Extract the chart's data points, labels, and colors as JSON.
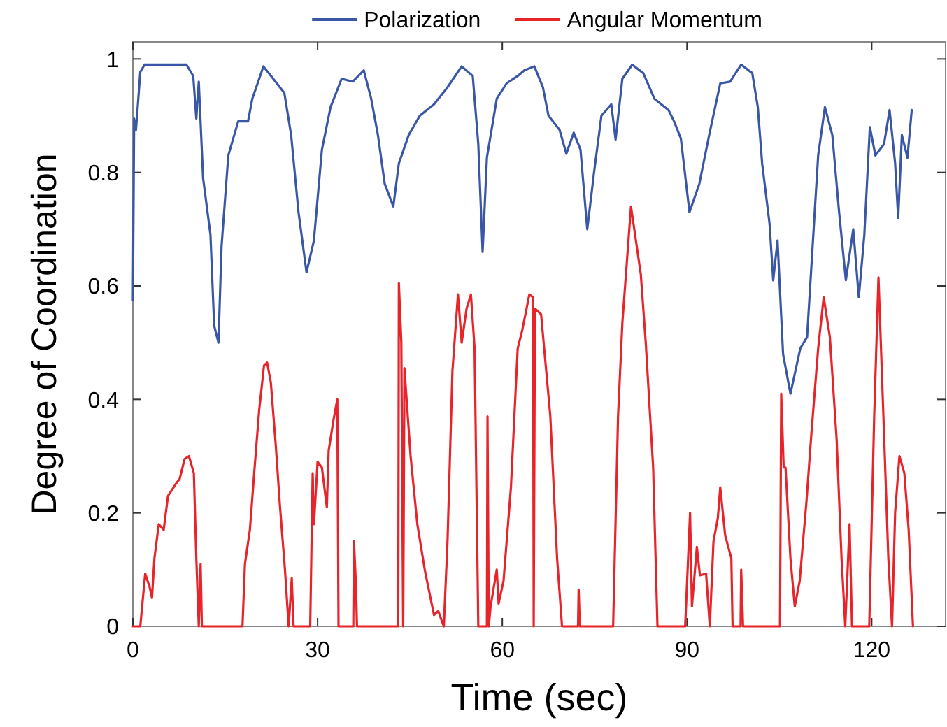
{
  "chart_data": {
    "type": "line",
    "xlabel": "Time (sec)",
    "ylabel": "Degree of Coordination",
    "xlim": [
      0,
      132
    ],
    "ylim": [
      0,
      1.03
    ],
    "xticks": [
      0,
      30,
      60,
      90,
      120
    ],
    "yticks": [
      0,
      0.2,
      0.4,
      0.6,
      0.8,
      1
    ],
    "grid": false,
    "legend": "top",
    "marker": "none",
    "line_style": "solid",
    "series": [
      {
        "name": "Polarization",
        "color": "#3a57a7",
        "x": [
          0,
          0.2,
          0.5,
          1.2,
          1.9,
          3.5,
          5.7,
          8.7,
          9.8,
          10.3,
          10.7,
          11.4,
          12.6,
          13.2,
          13.9,
          14.4,
          15.5,
          17.1,
          18.7,
          19.4,
          21.2,
          22.8,
          24.6,
          25.7,
          26.9,
          28.2,
          29.4,
          30.7,
          32.1,
          33.9,
          35.7,
          37.5,
          38.7,
          39.8,
          40.9,
          42.3,
          43.2,
          44.8,
          46.6,
          48.9,
          51.1,
          53.4,
          55.2,
          56.1,
          56.8,
          57.5,
          59.1,
          60.7,
          62.5,
          63.6,
          65.2,
          66.6,
          67.5,
          69.3,
          70.4,
          71.6,
          72.7,
          73.8,
          74.9,
          76.1,
          77.7,
          78.4,
          79.5,
          81.1,
          82.9,
          84.7,
          87,
          87.9,
          89,
          90.4,
          92,
          93.6,
          95.4,
          97,
          98.8,
          100.6,
          101.5,
          102.2,
          103.4,
          104,
          104.7,
          105.6,
          106.8,
          108.4,
          109.5,
          111.3,
          112.4,
          113.6,
          114.7,
          115.8,
          117,
          117.9,
          118.8,
          119.7,
          120.6,
          122,
          122.9,
          123.8,
          124.3,
          124.9,
          125.8,
          126.5
        ],
        "values": [
          0.575,
          0.895,
          0.875,
          0.977,
          0.99,
          0.99,
          0.99,
          0.99,
          0.97,
          0.895,
          0.96,
          0.79,
          0.69,
          0.53,
          0.5,
          0.67,
          0.83,
          0.89,
          0.89,
          0.93,
          0.987,
          0.965,
          0.94,
          0.866,
          0.73,
          0.624,
          0.68,
          0.84,
          0.915,
          0.965,
          0.96,
          0.98,
          0.93,
          0.866,
          0.78,
          0.74,
          0.816,
          0.866,
          0.9,
          0.92,
          0.95,
          0.987,
          0.97,
          0.85,
          0.66,
          0.826,
          0.93,
          0.957,
          0.97,
          0.98,
          0.987,
          0.95,
          0.9,
          0.875,
          0.833,
          0.87,
          0.84,
          0.7,
          0.8,
          0.9,
          0.92,
          0.858,
          0.965,
          0.99,
          0.975,
          0.93,
          0.91,
          0.89,
          0.86,
          0.73,
          0.78,
          0.866,
          0.957,
          0.96,
          0.99,
          0.975,
          0.915,
          0.816,
          0.71,
          0.61,
          0.68,
          0.48,
          0.41,
          0.49,
          0.51,
          0.83,
          0.915,
          0.866,
          0.73,
          0.61,
          0.7,
          0.58,
          0.69,
          0.88,
          0.83,
          0.85,
          0.91,
          0.816,
          0.72,
          0.866,
          0.826,
          0.91
        ]
      },
      {
        "name": "Angular Momentum",
        "color": "#e8242b",
        "x": [
          0,
          1.2,
          2,
          2.7,
          3.1,
          3.5,
          4.2,
          5,
          5.7,
          6.9,
          7.6,
          8.4,
          9.1,
          9.9,
          10.3,
          10.7,
          11,
          11.2,
          17.8,
          18.2,
          19,
          19.7,
          20.5,
          21.3,
          21.8,
          22.4,
          23.2,
          23.9,
          24.7,
          25.3,
          25.8,
          26.1,
          28.8,
          29.2,
          29.4,
          30,
          30.7,
          31.5,
          31.8,
          32.6,
          33.2,
          33.4,
          35.8,
          35.9,
          36.2,
          36.4,
          43.1,
          43.2,
          43.6,
          43.9,
          44.1,
          45.1,
          46.2,
          47.4,
          48.9,
          49.6,
          50.5,
          51.1,
          51.9,
          52.8,
          53.4,
          54.2,
          54.9,
          55.5,
          56.1,
          57.5,
          57.6,
          57.8,
          58.1,
          59.1,
          59.4,
          60.2,
          61.4,
          62.5,
          63.2,
          64.4,
          65,
          65.1,
          65.3,
          66.3,
          67.8,
          68.9,
          69.7,
          72.3,
          72.4,
          72.6,
          78,
          78.8,
          79.5,
          80.9,
          82.5,
          83.3,
          84.5,
          85.2,
          89.7,
          90.5,
          90.8,
          91.6,
          92.1,
          93.1,
          93.7,
          94.3,
          95,
          95.4,
          96.2,
          97.2,
          97.4,
          98.7,
          98.8,
          99.1,
          105.1,
          105.3,
          105.7,
          106,
          106.8,
          107.5,
          108.3,
          109.4,
          110.2,
          111.3,
          112.2,
          113.2,
          114.3,
          115.1,
          115.7,
          116.4,
          116.8,
          119.6,
          120.4,
          121.1,
          121.9,
          122.7,
          123.3,
          123.8,
          124.5,
          125.3,
          126,
          126.7
        ],
        "values": [
          0,
          0,
          0.093,
          0.07,
          0.05,
          0.12,
          0.18,
          0.17,
          0.23,
          0.25,
          0.26,
          0.295,
          0.3,
          0.27,
          0.12,
          0,
          0.11,
          0,
          0,
          0.11,
          0.17,
          0.27,
          0.38,
          0.46,
          0.465,
          0.43,
          0.32,
          0.21,
          0.1,
          0,
          0.085,
          0,
          0,
          0.27,
          0.18,
          0.29,
          0.28,
          0.21,
          0.31,
          0.365,
          0.4,
          0,
          0,
          0.15,
          0.08,
          0,
          0,
          0.605,
          0.5,
          0,
          0.455,
          0.3,
          0.18,
          0.1,
          0.02,
          0.027,
          0,
          0.15,
          0.45,
          0.585,
          0.5,
          0.56,
          0.585,
          0.49,
          0,
          0,
          0.37,
          0,
          0.035,
          0.1,
          0.04,
          0.08,
          0.245,
          0.49,
          0.52,
          0.585,
          0.58,
          0,
          0.56,
          0.55,
          0.37,
          0.12,
          0,
          0,
          0.065,
          0,
          0,
          0.37,
          0.535,
          0.74,
          0.62,
          0.5,
          0.28,
          0,
          0,
          0.2,
          0.035,
          0.14,
          0.09,
          0.093,
          0,
          0.15,
          0.19,
          0.245,
          0.16,
          0.12,
          0,
          0,
          0.1,
          0,
          0,
          0.41,
          0.28,
          0.28,
          0.12,
          0.035,
          0.08,
          0.22,
          0.34,
          0.49,
          0.58,
          0.51,
          0.33,
          0.12,
          0,
          0.18,
          0,
          0,
          0.37,
          0.615,
          0.37,
          0.12,
          0,
          0.2,
          0.3,
          0.27,
          0.17,
          0
        ]
      }
    ]
  }
}
